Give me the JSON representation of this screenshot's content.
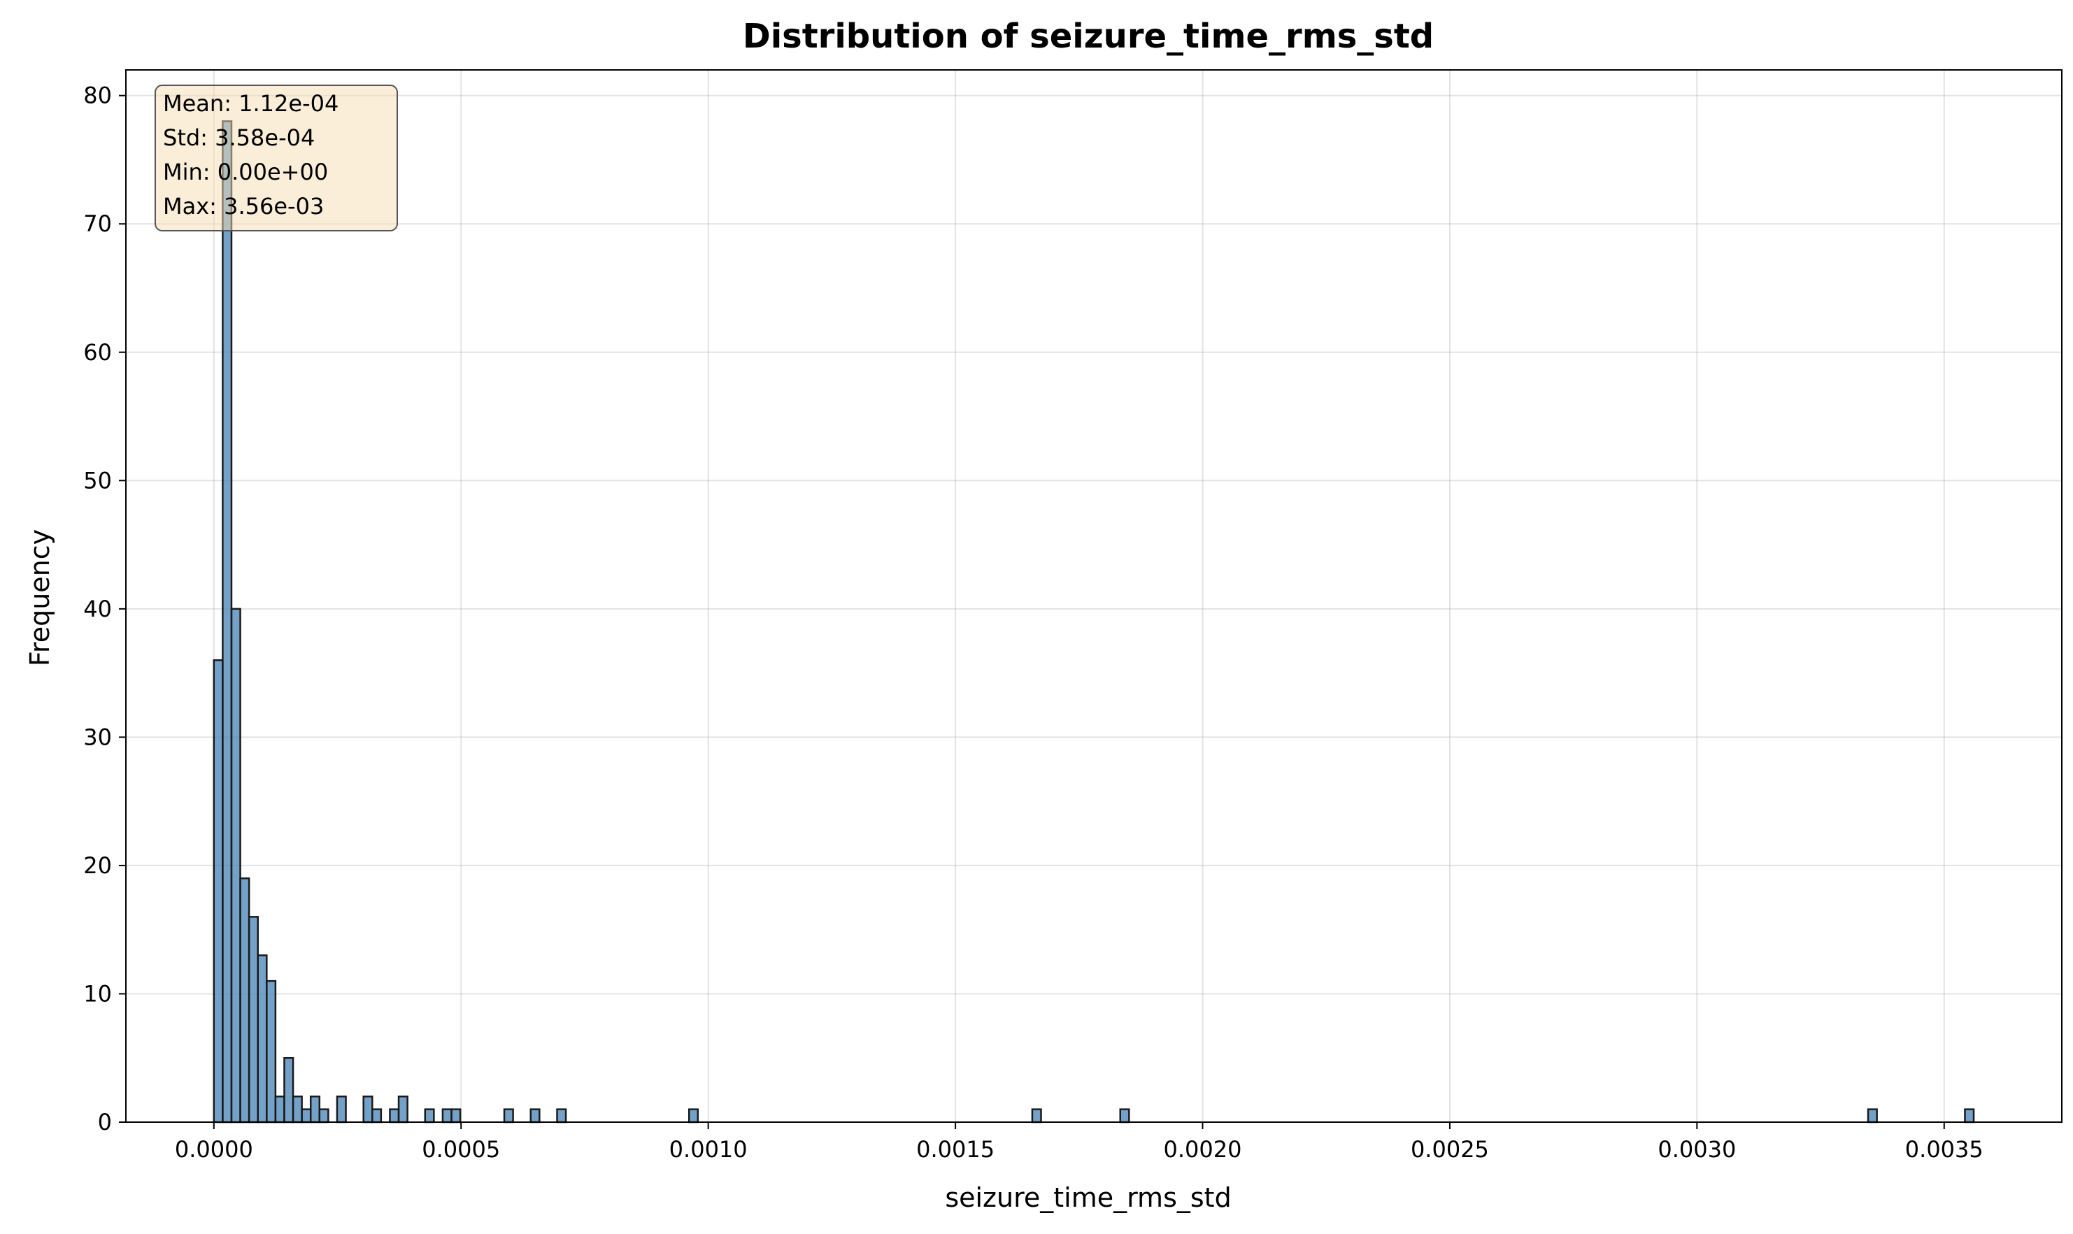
{
  "chart_data": {
    "type": "bar",
    "title": "Distribution of seizure_time_rms_std",
    "xlabel": "seizure_time_rms_std",
    "ylabel": "Frequency",
    "xlim": [
      -0.000178,
      0.003738
    ],
    "ylim": [
      0,
      82
    ],
    "xticks": [
      0.0,
      0.0005,
      0.001,
      0.0015,
      0.002,
      0.0025,
      0.003,
      0.0035
    ],
    "xtick_labels": [
      "0.0000",
      "0.0005",
      "0.0010",
      "0.0015",
      "0.0020",
      "0.0025",
      "0.0030",
      "0.0035"
    ],
    "yticks": [
      0,
      10,
      20,
      30,
      40,
      50,
      60,
      70,
      80
    ],
    "ytick_labels": [
      "0",
      "10",
      "20",
      "30",
      "40",
      "50",
      "60",
      "70",
      "80"
    ],
    "grid": true,
    "bin_width": 1.78e-05,
    "bar_color": "#4682b4",
    "edge_color": "#1a1a1a",
    "bins": [
      {
        "x": 0.0,
        "count": 36
      },
      {
        "x": 1.78e-05,
        "count": 78
      },
      {
        "x": 3.56e-05,
        "count": 40
      },
      {
        "x": 5.34e-05,
        "count": 19
      },
      {
        "x": 7.12e-05,
        "count": 16
      },
      {
        "x": 8.9e-05,
        "count": 13
      },
      {
        "x": 0.0001068,
        "count": 11
      },
      {
        "x": 0.0001246,
        "count": 2
      },
      {
        "x": 0.0001424,
        "count": 5
      },
      {
        "x": 0.0001602,
        "count": 2
      },
      {
        "x": 0.000178,
        "count": 1
      },
      {
        "x": 0.0001958,
        "count": 2
      },
      {
        "x": 0.0002136,
        "count": 1
      },
      {
        "x": 0.0002492,
        "count": 2
      },
      {
        "x": 0.0003026,
        "count": 2
      },
      {
        "x": 0.0003204,
        "count": 1
      },
      {
        "x": 0.000356,
        "count": 1
      },
      {
        "x": 0.0003738,
        "count": 2
      },
      {
        "x": 0.0004272,
        "count": 1
      },
      {
        "x": 0.0004628,
        "count": 1
      },
      {
        "x": 0.0004806,
        "count": 1
      },
      {
        "x": 0.0005874,
        "count": 1
      },
      {
        "x": 0.0006408,
        "count": 1
      },
      {
        "x": 0.0006942,
        "count": 1
      },
      {
        "x": 0.0009612,
        "count": 1
      },
      {
        "x": 0.0016554,
        "count": 1
      },
      {
        "x": 0.0018334,
        "count": 1
      },
      {
        "x": 0.0033462,
        "count": 1
      },
      {
        "x": 0.003542,
        "count": 1
      }
    ],
    "stats_box": {
      "placement": "top-left",
      "lines": [
        "Mean: 1.12e-04",
        "Std: 3.58e-04",
        "Min: 0.00e+00",
        "Max: 3.56e-03"
      ],
      "background": "#f5deb3",
      "border": "#555555"
    }
  }
}
